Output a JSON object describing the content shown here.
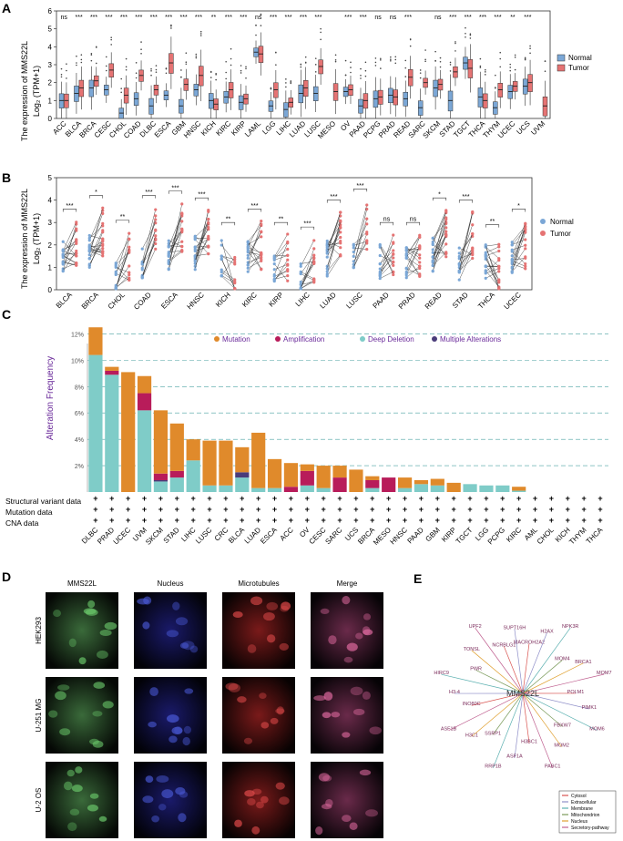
{
  "panel_letters": [
    "A",
    "B",
    "C",
    "D",
    "E"
  ],
  "colors": {
    "normal": "#7ba7d6",
    "tumor": "#e57373",
    "mutation": "#e08a2b",
    "amplification": "#b81c5a",
    "deep_deletion": "#7fccc8",
    "multiple": "#4a3c7a",
    "grid": "#4aa2a2",
    "purple_text": "#6a2a9a"
  },
  "chart_data": [
    {
      "type": "box",
      "panel": "A",
      "ylabel_line1": "The expression of MMS22L",
      "ylabel_line2": "Log₂ (TPM+1)",
      "ylim": [
        0,
        6
      ],
      "yticks": [
        0,
        1,
        2,
        3,
        4,
        5,
        6
      ],
      "legend": [
        "Normal",
        "Tumor"
      ],
      "categories": [
        "ACC",
        "BLCA",
        "BRCA",
        "CESC",
        "CHOL",
        "COAD",
        "DLBC",
        "ESCA",
        "GBM",
        "HNSC",
        "KICH",
        "KIRC",
        "KIRP",
        "LAML",
        "LGG",
        "LIHC",
        "LUAD",
        "LUSC",
        "MESO",
        "OV",
        "PAAD",
        "PCPG",
        "PRAD",
        "READ",
        "SARC",
        "SKCM",
        "STAD",
        "TGCT",
        "THCA",
        "THYM",
        "UCEC",
        "UCS",
        "UVM"
      ],
      "normal_median": [
        1.0,
        1.4,
        1.7,
        1.6,
        0.3,
        1.1,
        0.7,
        1.3,
        0.7,
        1.6,
        1.0,
        1.2,
        0.9,
        3.7,
        0.7,
        0.5,
        1.4,
        1.4,
        null,
        1.5,
        0.7,
        1.1,
        1.3,
        1.1,
        0.6,
        1.7,
        1.0,
        3.1,
        1.2,
        0.6,
        1.5,
        1.8,
        null
      ],
      "tumor_median": [
        1.0,
        1.7,
        2.1,
        2.7,
        1.3,
        2.4,
        1.6,
        3.1,
        1.9,
        2.4,
        0.8,
        1.6,
        1.1,
        3.6,
        1.6,
        0.9,
        1.7,
        2.9,
        1.5,
        1.6,
        1.0,
        1.2,
        1.2,
        2.3,
        2.0,
        1.9,
        2.6,
        2.8,
        1.0,
        1.6,
        1.8,
        2.0,
        0.7
      ],
      "significance": [
        "ns",
        "***",
        "***",
        "***",
        "***",
        "***",
        "***",
        "***",
        "***",
        "***",
        "**",
        "***",
        "***",
        "ns",
        "***",
        "***",
        "***",
        "***",
        "",
        "***",
        "***",
        "ns",
        "ns",
        "***",
        "",
        "ns",
        "***",
        "***",
        "***",
        "***",
        "**",
        "***",
        ""
      ]
    },
    {
      "type": "paired-scatter",
      "panel": "B",
      "ylabel_line1": "The expression of MMS22L",
      "ylabel_line2": "Log₂ (TPM+1)",
      "ylim": [
        0,
        5
      ],
      "yticks": [
        0,
        1,
        2,
        3,
        4,
        5
      ],
      "legend": [
        "Normal",
        "Tumor"
      ],
      "categories": [
        "BLCA",
        "BRCA",
        "CHOL",
        "COAD",
        "ESCA",
        "HNSC",
        "KICH",
        "KIRC",
        "KIRP",
        "LIHC",
        "LUAD",
        "LUSC",
        "PAAD",
        "PRAD",
        "READ",
        "STAD",
        "THCA",
        "UCEC"
      ],
      "normal_mean": [
        1.4,
        1.8,
        0.4,
        1.2,
        1.6,
        1.7,
        1.4,
        1.4,
        1.0,
        0.5,
        1.4,
        1.6,
        1.3,
        1.3,
        1.6,
        1.2,
        1.3,
        1.4
      ],
      "tumor_mean": [
        2.0,
        2.6,
        1.5,
        2.6,
        2.8,
        2.5,
        0.9,
        2.0,
        1.4,
        1.2,
        2.4,
        2.9,
        1.4,
        1.4,
        2.5,
        2.4,
        1.0,
        2.0
      ],
      "significance": [
        "***",
        "*",
        "**",
        "***",
        "***",
        "***",
        "**",
        "***",
        "**",
        "***",
        "***",
        "***",
        "ns",
        "ns",
        "*",
        "***",
        "**",
        "*"
      ]
    },
    {
      "type": "stacked-bar",
      "panel": "C",
      "ylabel": "Alteration Frequency",
      "yticks": [
        "2%",
        "4%",
        "6%",
        "8%",
        "10%",
        "12%"
      ],
      "ylim": [
        0,
        13
      ],
      "legend": [
        "Mutation",
        "Amplification",
        "Deep Deletion",
        "Multiple Alterations"
      ],
      "categories": [
        "DLBC",
        "PRAD",
        "UCEC",
        "UVM",
        "SKCM",
        "STAD",
        "LIHC",
        "LUSC",
        "CRC",
        "BLCA",
        "LUAD",
        "ESCA",
        "ACC",
        "OV",
        "CESC",
        "SARC",
        "UCS",
        "BRCA",
        "MESO",
        "HNSC",
        "PAAD",
        "GBM",
        "KIRP",
        "TGCT",
        "LGG",
        "PCPG",
        "KIRC",
        "AML",
        "CHOL",
        "KICH",
        "THYM",
        "THCA"
      ],
      "series": [
        {
          "name": "Deep Deletion",
          "values": [
            10.4,
            8.9,
            0,
            6.2,
            0.8,
            1.1,
            2.4,
            0.5,
            0.5,
            1.1,
            0.3,
            0.3,
            0,
            0.5,
            0.3,
            0,
            0,
            0.3,
            0,
            0.3,
            0.6,
            0.5,
            0,
            0.6,
            0.5,
            0.5,
            0.1,
            0,
            0,
            0,
            0,
            0
          ]
        },
        {
          "name": "Multiple Alterations",
          "values": [
            0,
            0,
            0,
            0,
            0.1,
            0,
            0,
            0,
            0,
            0.4,
            0,
            0,
            0,
            0,
            0,
            0,
            0,
            0,
            0,
            0,
            0,
            0,
            0,
            0,
            0,
            0,
            0,
            0,
            0,
            0,
            0,
            0
          ]
        },
        {
          "name": "Amplification",
          "values": [
            0,
            0.3,
            0,
            1.3,
            0.5,
            0.5,
            0,
            0,
            0,
            0,
            0,
            0,
            0.4,
            1.1,
            0,
            1.1,
            0,
            0.6,
            1.1,
            0,
            0,
            0,
            0,
            0,
            0,
            0,
            0,
            0,
            0,
            0,
            0,
            0
          ]
        },
        {
          "name": "Mutation",
          "values": [
            2.1,
            0.3,
            9.1,
            1.3,
            4.8,
            3.6,
            1.6,
            3.4,
            3.4,
            1.9,
            4.2,
            2.2,
            1.8,
            0.5,
            1.7,
            0.9,
            1.7,
            0.3,
            0,
            0.8,
            0.3,
            0.5,
            0.7,
            0,
            0,
            0,
            0.3,
            0,
            0,
            0,
            0,
            0
          ]
        }
      ],
      "row_labels": [
        "Structural variant data",
        "Mutation data",
        "CNA data"
      ],
      "row_marker": "+"
    }
  ],
  "panel_d": {
    "col_headers": [
      "MMS22L",
      "Nucleus",
      "Microtubules",
      "Merge"
    ],
    "row_labels": [
      "HEK293",
      "U-251 MG",
      "U-2 OS"
    ]
  },
  "panel_e": {
    "center": "MMS22L",
    "nodes": [
      "MACROH2A2",
      "H2AX",
      "NPK3R",
      "MOM4",
      "BRCA1",
      "MOM7",
      "POLM1",
      "PIMK1",
      "MOM6",
      "FBXW7",
      "MOM2",
      "PABC1",
      "H3BC1",
      "ASF1A",
      "RRP1B",
      "SSRP1",
      "H3C1",
      "ASF1B",
      "INO80C",
      "H3-4",
      "HIRC9",
      "PWR",
      "TONSL",
      "UPF2",
      "NCRBLG1",
      "SUPT16H"
    ],
    "legend": [
      "Cytosol",
      "Extracellular",
      "Membrane",
      "Mitochondrion",
      "Nucleus",
      "Secretory-pathway"
    ],
    "legend_colors": [
      "#d9534f",
      "#8e8ec8",
      "#5bb0b0",
      "#7a9a5a",
      "#e0a030",
      "#c06090"
    ]
  }
}
